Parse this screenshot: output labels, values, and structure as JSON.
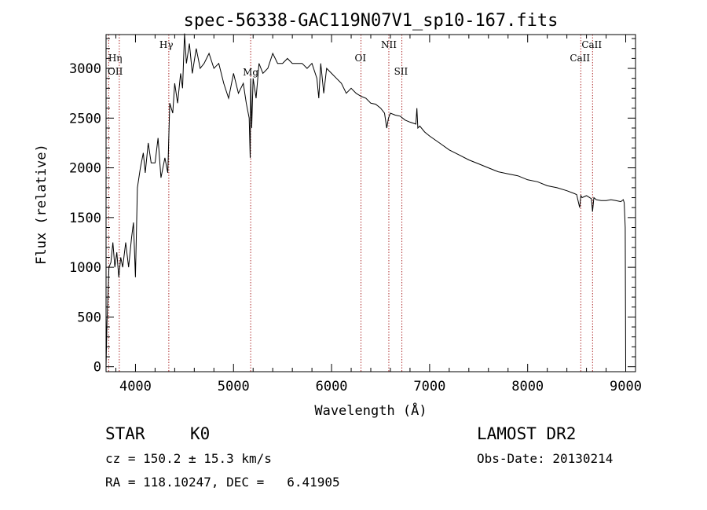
{
  "chart_data": {
    "type": "line",
    "title": "spec-56338-GAC119N07V1_sp10-167.fits",
    "xlabel": "Wavelength (Å)",
    "ylabel": "Flux (relative)",
    "xlim": [
      3700,
      9100
    ],
    "ylim": [
      -50,
      3340
    ],
    "xticks": [
      4000,
      5000,
      6000,
      7000,
      8000,
      9000
    ],
    "yticks": [
      0,
      500,
      1000,
      1500,
      2000,
      2500,
      3000
    ],
    "grid": false,
    "series": [
      {
        "name": "spectrum",
        "x": [
          3700,
          3710,
          3730,
          3750,
          3770,
          3790,
          3810,
          3830,
          3850,
          3870,
          3900,
          3930,
          3960,
          3980,
          4000,
          4020,
          4050,
          4080,
          4100,
          4130,
          4160,
          4200,
          4230,
          4260,
          4300,
          4330,
          4350,
          4380,
          4400,
          4430,
          4460,
          4480,
          4500,
          4520,
          4550,
          4580,
          4620,
          4660,
          4700,
          4750,
          4800,
          4850,
          4900,
          4950,
          5000,
          5050,
          5100,
          5130,
          5160,
          5170,
          5175,
          5185,
          5200,
          5230,
          5260,
          5300,
          5350,
          5400,
          5450,
          5500,
          5550,
          5600,
          5650,
          5700,
          5750,
          5800,
          5850,
          5870,
          5890,
          5900,
          5920,
          5950,
          6000,
          6050,
          6100,
          6150,
          6200,
          6250,
          6300,
          6350,
          6400,
          6450,
          6500,
          6540,
          6563,
          6580,
          6600,
          6650,
          6700,
          6750,
          6800,
          6860,
          6870,
          6880,
          6900,
          6950,
          7000,
          7100,
          7200,
          7300,
          7400,
          7500,
          7600,
          7700,
          7800,
          7900,
          8000,
          8100,
          8200,
          8300,
          8400,
          8480,
          8500,
          8530,
          8542,
          8555,
          8600,
          8650,
          8662,
          8675,
          8700,
          8750,
          8800,
          8850,
          8900,
          8950,
          8975,
          8985,
          8995,
          9000
        ],
        "y": [
          0,
          450,
          1000,
          1050,
          1250,
          1000,
          1150,
          900,
          1100,
          1000,
          1250,
          1000,
          1300,
          1450,
          900,
          1800,
          2000,
          2150,
          1950,
          2250,
          2050,
          2050,
          2300,
          1900,
          2100,
          1950,
          2650,
          2550,
          2850,
          2650,
          2950,
          2800,
          3350,
          3050,
          3250,
          2950,
          3200,
          3000,
          3050,
          3150,
          3000,
          3050,
          2850,
          2700,
          2950,
          2750,
          2850,
          2650,
          2500,
          2100,
          2900,
          2400,
          2900,
          2700,
          3050,
          2950,
          3000,
          3150,
          3050,
          3050,
          3100,
          3050,
          3050,
          3050,
          3000,
          3050,
          2900,
          2700,
          3050,
          2950,
          2750,
          3000,
          2950,
          2900,
          2850,
          2750,
          2800,
          2750,
          2720,
          2700,
          2650,
          2640,
          2600,
          2550,
          2400,
          2500,
          2550,
          2530,
          2520,
          2480,
          2460,
          2440,
          2600,
          2400,
          2420,
          2360,
          2320,
          2250,
          2180,
          2130,
          2080,
          2040,
          2000,
          1960,
          1940,
          1920,
          1880,
          1860,
          1820,
          1800,
          1770,
          1740,
          1730,
          1600,
          1720,
          1700,
          1720,
          1690,
          1560,
          1700,
          1680,
          1670,
          1670,
          1680,
          1670,
          1660,
          1680,
          1650,
          1400,
          0
        ]
      }
    ],
    "lines": [
      {
        "label": "Hη",
        "x": 3835
      },
      {
        "label": "OII",
        "x": 3727
      },
      {
        "label": "Hγ",
        "x": 4340
      },
      {
        "label": "Mg",
        "x": 5175
      },
      {
        "label": "OI",
        "x": 6300
      },
      {
        "label": "NII",
        "x": 6584
      },
      {
        "label": "SII",
        "x": 6717
      },
      {
        "label": "CaII",
        "x": 8542
      },
      {
        "label": "CaII",
        "x": 8662
      }
    ]
  },
  "info": {
    "class_label": "STAR",
    "subclass": "K0",
    "survey": "LAMOST DR2",
    "cz_text": "cz = 150.2 ± 15.3 km/s",
    "obs_date": "Obs-Date: 20130214",
    "radec": "RA = 118.10247, DEC =   6.41905"
  }
}
